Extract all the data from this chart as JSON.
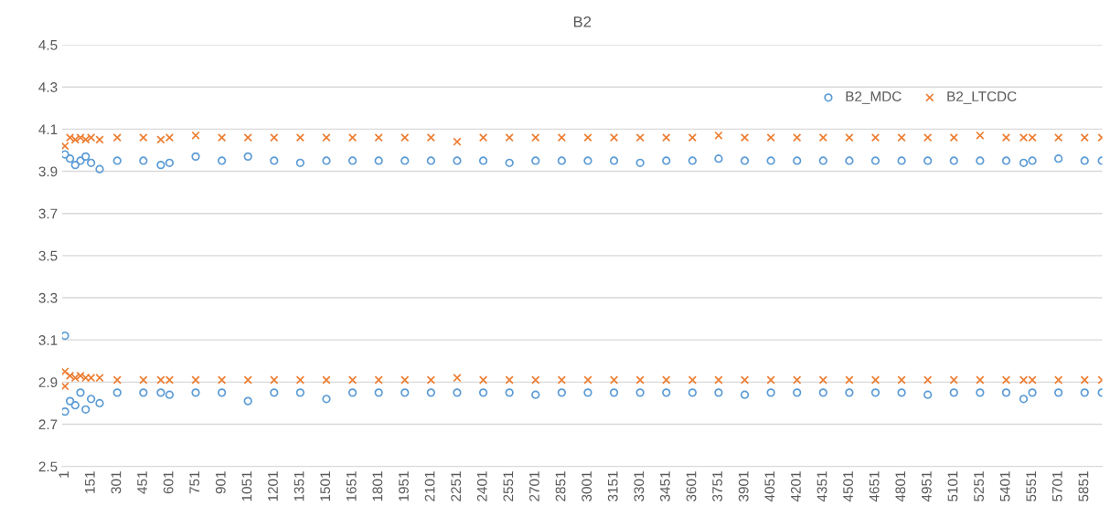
{
  "chart_data": {
    "type": "scatter",
    "title": "B2",
    "x": [
      1,
      30,
      60,
      90,
      120,
      151,
      200,
      301,
      451,
      551,
      601,
      751,
      901,
      1051,
      1201,
      1351,
      1501,
      1651,
      1801,
      1951,
      2101,
      2251,
      2401,
      2551,
      2701,
      2851,
      3001,
      3151,
      3301,
      3451,
      3601,
      3751,
      3901,
      4051,
      4201,
      4351,
      4501,
      4651,
      4801,
      4951,
      5101,
      5251,
      5401,
      5501,
      5551,
      5701,
      5851,
      5950,
      1,
      1,
      30,
      60,
      90,
      120,
      151,
      200,
      301,
      451,
      551,
      601,
      751,
      901,
      1051,
      1201,
      1351,
      1501,
      1651,
      1801,
      1951,
      2101,
      2251,
      2401,
      2551,
      2701,
      2851,
      3001,
      3151,
      3301,
      3451,
      3601,
      3751,
      3901,
      4051,
      4201,
      4351,
      4501,
      4651,
      4801,
      4951,
      5101,
      5251,
      5401,
      5501,
      5551,
      5701,
      5851,
      5950
    ],
    "series": [
      {
        "name": "B2_MDC",
        "color": "#5b9bd5",
        "marker": "circle",
        "values": [
          3.98,
          3.96,
          3.93,
          3.95,
          3.97,
          3.94,
          3.91,
          3.95,
          3.95,
          3.93,
          3.94,
          3.97,
          3.95,
          3.97,
          3.95,
          3.94,
          3.95,
          3.95,
          3.95,
          3.95,
          3.95,
          3.95,
          3.95,
          3.94,
          3.95,
          3.95,
          3.95,
          3.95,
          3.94,
          3.95,
          3.95,
          3.96,
          3.95,
          3.95,
          3.95,
          3.95,
          3.95,
          3.95,
          3.95,
          3.95,
          3.95,
          3.95,
          3.95,
          3.94,
          3.95,
          3.96,
          3.95,
          3.95,
          3.12,
          2.76,
          2.81,
          2.79,
          2.85,
          2.77,
          2.82,
          2.8,
          2.85,
          2.85,
          2.85,
          2.84,
          2.85,
          2.85,
          2.81,
          2.85,
          2.85,
          2.82,
          2.85,
          2.85,
          2.85,
          2.85,
          2.85,
          2.85,
          2.85,
          2.84,
          2.85,
          2.85,
          2.85,
          2.85,
          2.85,
          2.85,
          2.85,
          2.84,
          2.85,
          2.85,
          2.85,
          2.85,
          2.85,
          2.85,
          2.84,
          2.85,
          2.85,
          2.85,
          2.82,
          2.85,
          2.85,
          2.85,
          2.85
        ]
      },
      {
        "name": "B2_LTCDC",
        "color": "#ed7d31",
        "marker": "cross",
        "values": [
          4.02,
          4.06,
          4.05,
          4.06,
          4.05,
          4.06,
          4.05,
          4.06,
          4.06,
          4.05,
          4.06,
          4.07,
          4.06,
          4.06,
          4.06,
          4.06,
          4.06,
          4.06,
          4.06,
          4.06,
          4.06,
          4.04,
          4.06,
          4.06,
          4.06,
          4.06,
          4.06,
          4.06,
          4.06,
          4.06,
          4.06,
          4.07,
          4.06,
          4.06,
          4.06,
          4.06,
          4.06,
          4.06,
          4.06,
          4.06,
          4.06,
          4.07,
          4.06,
          4.06,
          4.06,
          4.06,
          4.06,
          4.06,
          2.95,
          2.88,
          2.93,
          2.92,
          2.93,
          2.92,
          2.92,
          2.92,
          2.91,
          2.91,
          2.91,
          2.91,
          2.91,
          2.91,
          2.91,
          2.91,
          2.91,
          2.91,
          2.91,
          2.91,
          2.91,
          2.91,
          2.92,
          2.91,
          2.91,
          2.91,
          2.91,
          2.91,
          2.91,
          2.91,
          2.91,
          2.91,
          2.91,
          2.91,
          2.91,
          2.91,
          2.91,
          2.91,
          2.91,
          2.91,
          2.91,
          2.91,
          2.91,
          2.91,
          2.91,
          2.91,
          2.91,
          2.91,
          2.91
        ]
      }
    ],
    "xlim": [
      -15,
      5952
    ],
    "xticks": [
      1,
      151,
      301,
      451,
      601,
      751,
      901,
      1051,
      1201,
      1351,
      1501,
      1651,
      1801,
      1951,
      2101,
      2251,
      2401,
      2551,
      2701,
      2851,
      3001,
      3151,
      3301,
      3451,
      3601,
      3751,
      3901,
      4051,
      4201,
      4351,
      4501,
      4651,
      4801,
      4951,
      5101,
      5251,
      5401,
      5551,
      5701,
      5851
    ],
    "ylim": [
      2.5,
      4.5
    ],
    "yticks": [
      2.5,
      2.7,
      2.9,
      3.1,
      3.3,
      3.5,
      3.7,
      3.9,
      4.1,
      4.3,
      4.5
    ],
    "grid": "y",
    "legend": "top right"
  }
}
